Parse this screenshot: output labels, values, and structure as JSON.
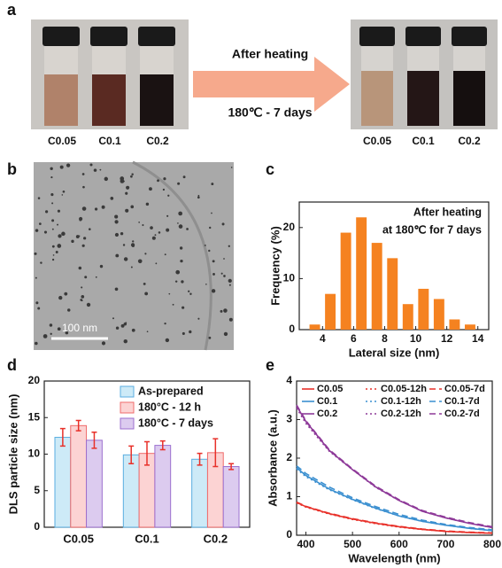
{
  "panel_labels": [
    "a",
    "b",
    "c",
    "d",
    "e"
  ],
  "panel_a": {
    "arrow_text": [
      "After heating",
      "180℃ - 7 days"
    ],
    "before_labels": [
      "C0.05",
      "C0.1",
      "C0.2"
    ],
    "after_labels": [
      "C0.05",
      "C0.1",
      "C0.2"
    ]
  },
  "panel_b": {
    "scale_bar": "100  nm"
  },
  "chart_data": [
    {
      "type": "histogram",
      "annotation": [
        "After heating",
        "at 180℃ for 7 days"
      ],
      "xlabel": "Lateral size (nm)",
      "ylabel": "Frequency (%)",
      "bins": [
        3,
        4,
        5,
        6,
        7,
        8,
        9,
        10,
        11,
        12,
        13,
        14
      ],
      "values": [
        1,
        7,
        19,
        22,
        17,
        14,
        5,
        8,
        6,
        2,
        1
      ],
      "color": "#f58220",
      "xlim": [
        2.5,
        14.7
      ],
      "xticks": [
        4,
        6,
        8,
        10,
        12,
        14
      ],
      "ylim": [
        0,
        25
      ],
      "yticks": [
        0,
        10,
        20
      ]
    },
    {
      "type": "bar",
      "ylabel": "DLS particle size (nm)",
      "categories": [
        "C0.05",
        "C0.1",
        "C0.2"
      ],
      "error_color": "#e8312a",
      "series": [
        {
          "name": "As-prepared",
          "color": "#cdeaf7",
          "edge": "#5aaee0",
          "values": [
            12.3,
            9.9,
            9.3
          ],
          "errors": [
            1.2,
            1.2,
            0.8
          ]
        },
        {
          "name": "180°C - 12 h",
          "color": "#fcd3d3",
          "edge": "#ef6b6b",
          "values": [
            13.9,
            10.1,
            10.2
          ],
          "errors": [
            0.7,
            1.6,
            1.9
          ]
        },
        {
          "name": "180°C - 7 days",
          "color": "#dccbef",
          "edge": "#9b6fcf",
          "values": [
            11.9,
            11.2,
            8.3
          ],
          "errors": [
            1.1,
            0.6,
            0.4
          ]
        }
      ],
      "ylim": [
        0,
        20
      ],
      "yticks": [
        0,
        5,
        10,
        15,
        20
      ]
    },
    {
      "type": "line",
      "xlabel": "Wavelength (nm)",
      "ylabel": "Absorbance (a.u.)",
      "x": [
        380,
        400,
        450,
        500,
        550,
        600,
        650,
        700,
        750,
        800
      ],
      "series": [
        {
          "name": "C0.05",
          "color": "#e8312a",
          "dash": "solid",
          "values": [
            0.85,
            0.74,
            0.56,
            0.42,
            0.31,
            0.22,
            0.15,
            0.1,
            0.07,
            0.05
          ]
        },
        {
          "name": "C0.05-12h",
          "color": "#e8312a",
          "dash": "dotted",
          "values": [
            0.84,
            0.73,
            0.55,
            0.41,
            0.3,
            0.21,
            0.15,
            0.1,
            0.07,
            0.05
          ]
        },
        {
          "name": "C0.05-7d",
          "color": "#e8312a",
          "dash": "dashed",
          "values": [
            0.86,
            0.75,
            0.57,
            0.43,
            0.32,
            0.23,
            0.16,
            0.11,
            0.08,
            0.06
          ]
        },
        {
          "name": "C0.1",
          "color": "#3a8fd0",
          "dash": "solid",
          "values": [
            1.75,
            1.55,
            1.2,
            0.93,
            0.7,
            0.5,
            0.36,
            0.26,
            0.18,
            0.12
          ]
        },
        {
          "name": "C0.1-12h",
          "color": "#3a8fd0",
          "dash": "dotted",
          "values": [
            1.72,
            1.52,
            1.18,
            0.92,
            0.69,
            0.5,
            0.36,
            0.26,
            0.18,
            0.12
          ]
        },
        {
          "name": "C0.1-7d",
          "color": "#3a8fd0",
          "dash": "dashed",
          "values": [
            1.8,
            1.6,
            1.25,
            0.97,
            0.74,
            0.54,
            0.39,
            0.28,
            0.2,
            0.14
          ]
        },
        {
          "name": "C0.2",
          "color": "#8e3a99",
          "dash": "solid",
          "values": [
            3.35,
            2.95,
            2.2,
            1.7,
            1.25,
            0.9,
            0.62,
            0.45,
            0.31,
            0.2
          ]
        },
        {
          "name": "C0.2-12h",
          "color": "#8e3a99",
          "dash": "dotted",
          "values": [
            3.3,
            2.9,
            2.18,
            1.7,
            1.24,
            0.9,
            0.62,
            0.45,
            0.31,
            0.2
          ]
        },
        {
          "name": "C0.2-7d",
          "color": "#8e3a99",
          "dash": "dashed",
          "values": [
            3.38,
            2.97,
            2.22,
            1.72,
            1.27,
            0.92,
            0.64,
            0.47,
            0.33,
            0.22
          ]
        }
      ],
      "xlim": [
        380,
        800
      ],
      "xticks": [
        400,
        500,
        600,
        700,
        800
      ],
      "ylim": [
        0,
        4
      ],
      "yticks": [
        0,
        1,
        2,
        3,
        4
      ]
    }
  ]
}
